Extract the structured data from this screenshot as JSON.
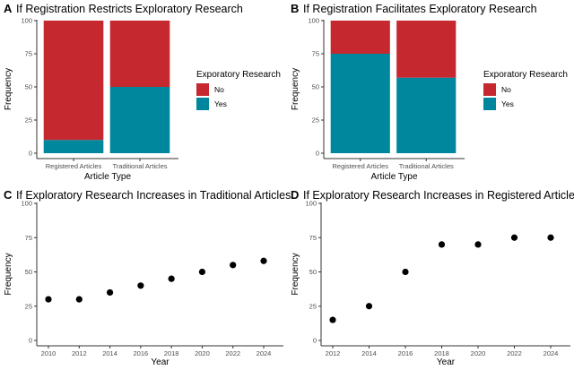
{
  "colors": {
    "no": "#c5282f",
    "yes": "#00879d",
    "point": "#000000",
    "axis": "#333333"
  },
  "legend": {
    "title": "Exporatory Research",
    "items": [
      "No",
      "Yes"
    ]
  },
  "chart_data": [
    {
      "panel": "A",
      "type": "bar",
      "stacked": true,
      "title": "If Registration Restricts Exploratory Research",
      "xlabel": "Article Type",
      "ylabel": "Frequency",
      "ylim": [
        0,
        100
      ],
      "yticks": [
        0,
        25,
        50,
        75,
        100
      ],
      "categories": [
        "Registered Articles",
        "Traditional Articles"
      ],
      "series": [
        {
          "name": "Yes",
          "values": [
            10,
            50
          ]
        },
        {
          "name": "No",
          "values": [
            90,
            50
          ]
        }
      ],
      "legend": "right"
    },
    {
      "panel": "B",
      "type": "bar",
      "stacked": true,
      "title": "If Registration Facilitates Exploratory Research",
      "xlabel": "Article Type",
      "ylabel": "Frequency",
      "ylim": [
        0,
        100
      ],
      "yticks": [
        0,
        25,
        50,
        75,
        100
      ],
      "categories": [
        "Registered Articles",
        "Traditional Articles"
      ],
      "series": [
        {
          "name": "Yes",
          "values": [
            75,
            57
          ]
        },
        {
          "name": "No",
          "values": [
            25,
            43
          ]
        }
      ],
      "legend": "right"
    },
    {
      "panel": "C",
      "type": "scatter",
      "title": "If Exploratory Research Increases in Traditional Articles",
      "xlabel": "Year",
      "ylabel": "Frequency",
      "ylim": [
        0,
        100
      ],
      "yticks": [
        0,
        25,
        50,
        75,
        100
      ],
      "xticks": [
        2010,
        2012,
        2014,
        2016,
        2018,
        2020,
        2022,
        2024
      ],
      "x": [
        2010,
        2012,
        2014,
        2016,
        2018,
        2020,
        2022,
        2024
      ],
      "y": [
        30,
        30,
        35,
        40,
        45,
        50,
        55,
        58
      ]
    },
    {
      "panel": "D",
      "type": "scatter",
      "title": "If Exploratory Research Increases in Registered Articles",
      "xlabel": "Year",
      "ylabel": "Frequency",
      "ylim": [
        0,
        100
      ],
      "yticks": [
        0,
        25,
        50,
        75,
        100
      ],
      "xticks": [
        2012,
        2014,
        2016,
        2018,
        2020,
        2022,
        2024
      ],
      "x": [
        2012,
        2014,
        2016,
        2018,
        2020,
        2022,
        2024
      ],
      "y": [
        15,
        25,
        50,
        70,
        70,
        75,
        75
      ]
    }
  ]
}
